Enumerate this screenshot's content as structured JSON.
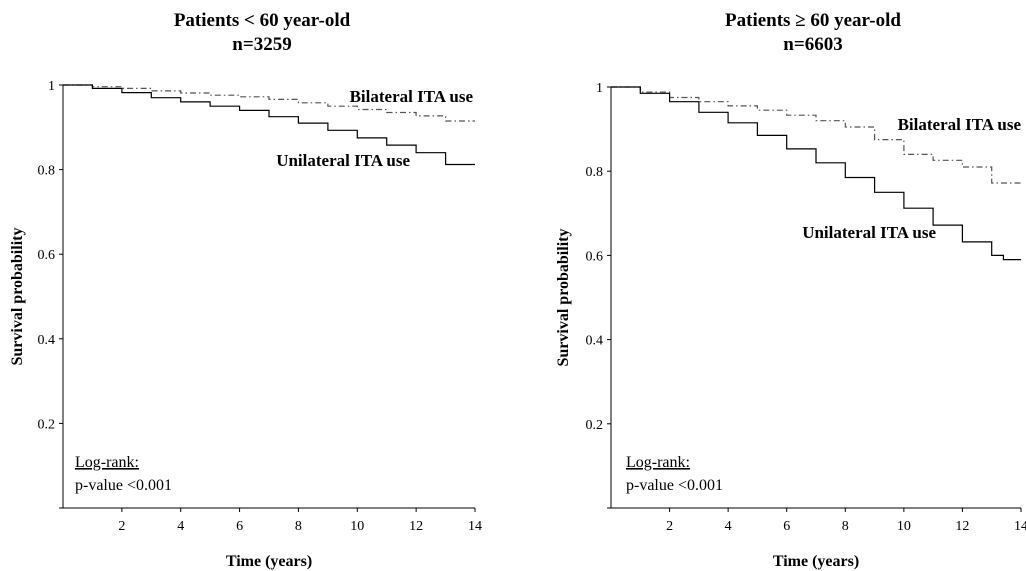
{
  "chart_data": [
    {
      "type": "line",
      "title": "Patients < 60 year-old",
      "subtitle": "n=3259",
      "xlabel": "Time (years)",
      "ylabel": "Survival probability",
      "xlim": [
        0,
        14
      ],
      "ylim": [
        0,
        1
      ],
      "x_ticks": [
        "2",
        "4",
        "6",
        "8",
        "10",
        "12",
        "14"
      ],
      "y_ticks": [
        "1",
        "0.8",
        "0.6",
        "0.4",
        "0.2"
      ],
      "grid": false,
      "series": [
        {
          "name": "Bilateral ITA use",
          "style": "dash-dot",
          "color": "#555555",
          "x": [
            0,
            1,
            2,
            3,
            4,
            5,
            6,
            7,
            8,
            9,
            10,
            11,
            12,
            13,
            14
          ],
          "y": [
            1.0,
            0.996,
            0.992,
            0.986,
            0.981,
            0.976,
            0.972,
            0.966,
            0.958,
            0.95,
            0.942,
            0.935,
            0.927,
            0.915,
            0.915
          ]
        },
        {
          "name": "Unilateral ITA use",
          "style": "solid",
          "color": "#000000",
          "x": [
            0,
            1,
            2,
            3,
            4,
            5,
            6,
            7,
            8,
            9,
            10,
            11,
            12,
            13,
            14
          ],
          "y": [
            1.0,
            0.992,
            0.982,
            0.97,
            0.96,
            0.95,
            0.94,
            0.925,
            0.91,
            0.893,
            0.875,
            0.858,
            0.84,
            0.812,
            0.812
          ]
        }
      ],
      "annotations": {
        "stat_heading": "Log-rank:",
        "stat_value": "p-value <0.001"
      }
    },
    {
      "type": "line",
      "title": "Patients ≥ 60 year-old",
      "subtitle": "n=6603",
      "xlabel": "Time (years)",
      "ylabel": "Survival probability",
      "xlim": [
        0,
        14
      ],
      "ylim": [
        0,
        1
      ],
      "x_ticks": [
        "2",
        "4",
        "6",
        "8",
        "10",
        "12",
        "14"
      ],
      "y_ticks": [
        "1",
        "0.8",
        "0.6",
        "0.4",
        "0.2"
      ],
      "grid": false,
      "series": [
        {
          "name": "Bilateral ITA use",
          "style": "dash-dot",
          "color": "#555555",
          "x": [
            0,
            1,
            2,
            3,
            4,
            5,
            6,
            7,
            8,
            9,
            10,
            11,
            12,
            13,
            14
          ],
          "y": [
            1.0,
            0.988,
            0.975,
            0.965,
            0.955,
            0.945,
            0.933,
            0.92,
            0.905,
            0.875,
            0.84,
            0.826,
            0.81,
            0.772,
            0.772
          ]
        },
        {
          "name": "Unilateral ITA use",
          "style": "solid",
          "color": "#000000",
          "x": [
            0,
            1,
            2,
            3,
            4,
            5,
            6,
            7,
            8,
            9,
            10,
            11,
            12,
            13,
            13.4,
            14
          ],
          "y": [
            1.0,
            0.985,
            0.965,
            0.94,
            0.915,
            0.885,
            0.853,
            0.82,
            0.785,
            0.75,
            0.712,
            0.672,
            0.632,
            0.6,
            0.59,
            0.59
          ]
        }
      ],
      "annotations": {
        "stat_heading": "Log-rank:",
        "stat_value": "p-value <0.001"
      }
    }
  ]
}
